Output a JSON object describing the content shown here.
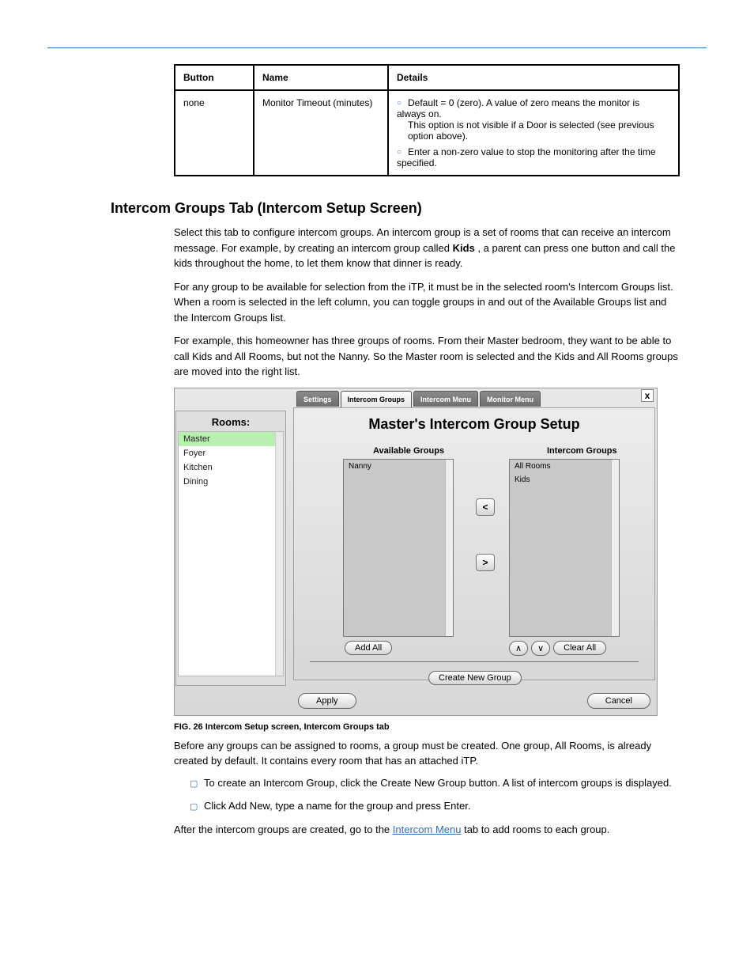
{
  "top_table": {
    "headers": [
      "Button",
      "Name",
      "Details"
    ],
    "row": {
      "button": "none",
      "name": "Monitor Timeout (minutes)",
      "details": [
        {
          "kind": "bullet",
          "text": "Default = 0 (zero). A value of zero means the monitor is always on."
        },
        {
          "kind": "plain",
          "text": "This option is not visible if a Door is selected (see previous option above)."
        },
        {
          "kind": "bullet",
          "text": "Enter a non-zero value to stop the monitoring after the time specified."
        }
      ]
    }
  },
  "section": {
    "heading": "Intercom Groups Tab (Intercom Setup Screen)",
    "p1_pre": "Select this tab to configure intercom groups. An intercom group is a set of rooms that can receive an intercom message. For example, by creating an intercom group called ",
    "p1_kids": "Kids",
    "p1_post": ", a parent can press one button and call the kids throughout the home, to let them know that dinner is ready.",
    "p2": "For any group to be available for selection from the iTP, it must be in the selected room's Intercom Groups list. When a room is selected in the left column, you can toggle groups in and out of the Available Groups list and the Intercom Groups list.",
    "p3": "For example, this homeowner has three groups of rooms. From their Master bedroom, they want to be able to call Kids and All Rooms, but not the Nanny. So the Master room is selected and the Kids and All Rooms groups are moved into the right list.",
    "fig_caption": "FIG. 26  Intercom Setup screen, Intercom Groups tab"
  },
  "screenshot": {
    "close_label": "x",
    "rooms_header": "Rooms:",
    "rooms": [
      "Master",
      "Foyer",
      "Kitchen",
      "Dining"
    ],
    "selected_room_index": 0,
    "tabs": [
      "Settings",
      "Intercom Groups",
      "Intercom Menu",
      "Monitor Menu"
    ],
    "active_tab_index": 1,
    "panel_title": "Master's Intercom Group Setup",
    "available_header": "Available Groups",
    "intercom_header": "Intercom Groups",
    "available_items": [
      "Nanny"
    ],
    "group_items": [
      "All Rooms",
      "Kids"
    ],
    "arrow_left_label": "<",
    "arrow_right_label": ">",
    "add_all_label": "Add All",
    "move_up_label": "∧",
    "move_down_label": "∨",
    "clear_all_label": "Clear All",
    "create_label": "Create New Group",
    "apply_label": "Apply",
    "cancel_label": "Cancel"
  },
  "below": {
    "p1": "Before any groups can be assigned to rooms, a group must be created. One group, All Rooms, is already created by default. It contains every room that has an attached iTP.",
    "bullets": [
      "To create an Intercom Group, click the Create New Group button. A list of intercom groups is displayed.",
      "Click Add New, type a name for the group and press Enter."
    ],
    "p2_pre": "After the intercom groups are created, go to the ",
    "p2_link": "Intercom Menu",
    "p2_post": " tab to add rooms to each group."
  },
  "colors": {
    "rule_blue": "#2b6fb6",
    "bullet_blue": "#2b6fb6",
    "room_selected_bg": "#b8f0b0"
  }
}
